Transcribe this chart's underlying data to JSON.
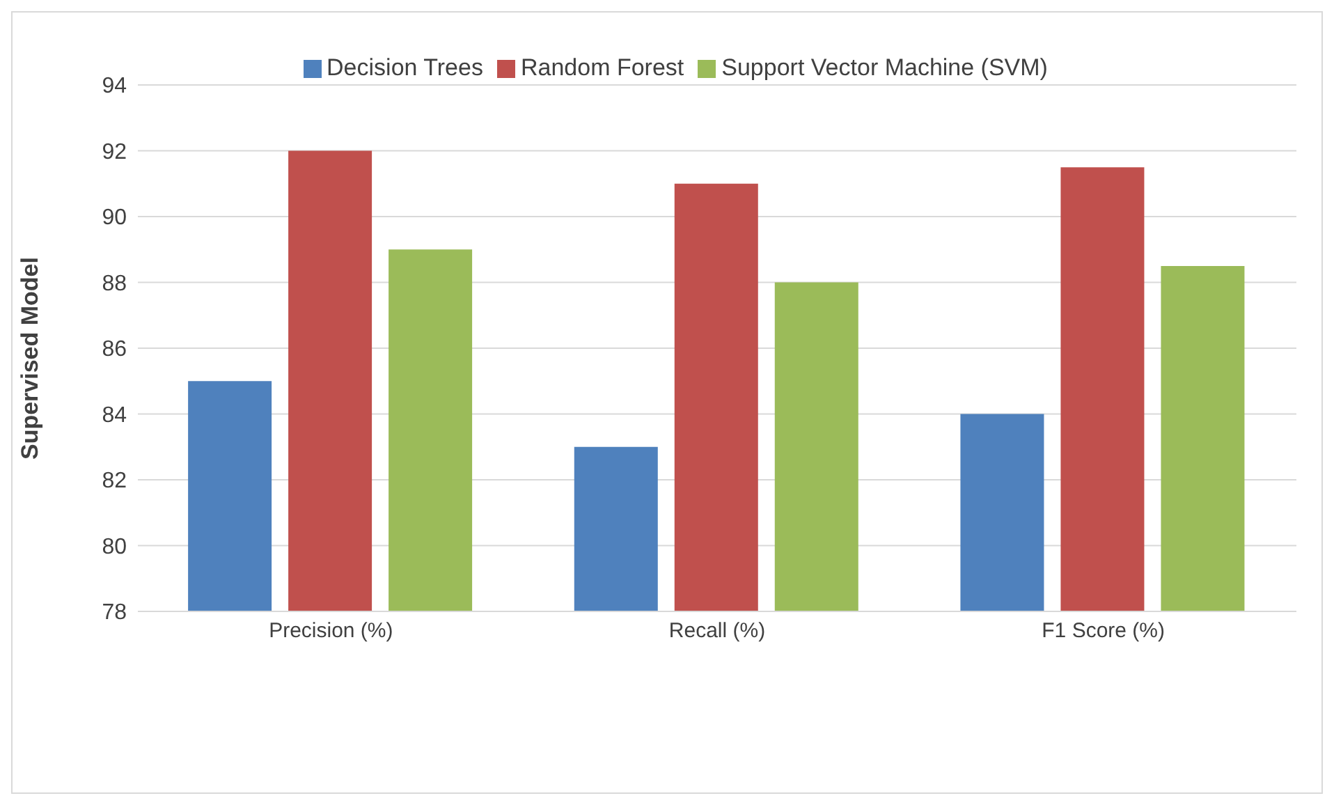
{
  "chart_data": {
    "type": "bar",
    "ylabel": "Supervised Model",
    "categories": [
      "Precision (%)",
      "Recall (%)",
      "F1 Score (%)"
    ],
    "series": [
      {
        "name": "Decision Trees",
        "color": "#4f81bd",
        "values": [
          85,
          83,
          84
        ]
      },
      {
        "name": "Random Forest",
        "color": "#c0504d",
        "values": [
          92,
          91,
          91.5
        ]
      },
      {
        "name": "Support Vector Machine (SVM)",
        "color": "#9bbb59",
        "values": [
          89,
          88,
          88.5
        ]
      }
    ],
    "ylim": [
      78,
      94
    ],
    "yticks": [
      78,
      80,
      82,
      84,
      86,
      88,
      90,
      92,
      94
    ],
    "grid": "y",
    "legend": "top"
  }
}
